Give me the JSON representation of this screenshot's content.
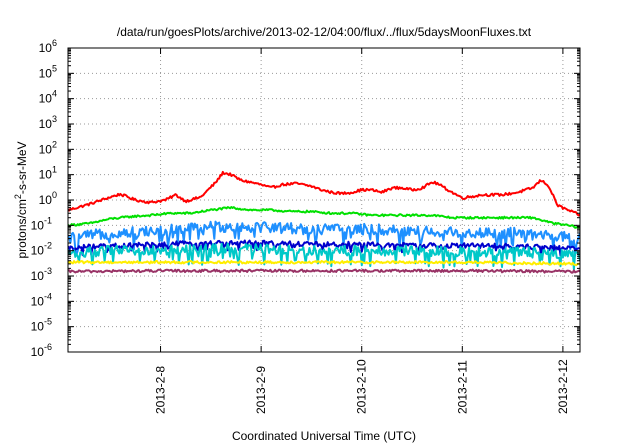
{
  "chart_data": {
    "type": "line",
    "title": "/data/run/goesPlots/archive/2013-02-12/04:00/flux/../flux/5daysMoonFluxes.txt",
    "xlabel": "Coordinated Universal Time (UTC)",
    "ylabel_parts": [
      "protons/cm",
      "2",
      "-s-sr-MeV"
    ],
    "y_scale": "log",
    "ylim_exp": [
      -6,
      6
    ],
    "y_tick_exponents": [
      6,
      5,
      4,
      3,
      2,
      1,
      0,
      -1,
      -2,
      -3,
      -4,
      -5,
      -6
    ],
    "y_tick_base": "10",
    "xlim_days": [
      7.08,
      12.17
    ],
    "x_ticks": [
      {
        "label": "2013-2-8",
        "day": 8
      },
      {
        "label": "2013-2-9",
        "day": 9
      },
      {
        "label": "2013-2-10",
        "day": 10
      },
      {
        "label": "2013-2-11",
        "day": 11
      },
      {
        "label": "2013-2-12",
        "day": 12
      }
    ],
    "grid": "dotted",
    "series": [
      {
        "color": "#ff0000",
        "noise": 0.05,
        "x": [
          7.08,
          7.3,
          7.5,
          7.6,
          7.75,
          7.9,
          8.05,
          8.15,
          8.25,
          8.4,
          8.55,
          8.62,
          8.7,
          8.8,
          8.9,
          9.0,
          9.1,
          9.2,
          9.35,
          9.5,
          9.6,
          9.7,
          9.8,
          9.9,
          10.0,
          10.1,
          10.2,
          10.3,
          10.4,
          10.5,
          10.6,
          10.7,
          10.75,
          10.9,
          11.0,
          11.2,
          11.4,
          11.55,
          11.7,
          11.78,
          11.85,
          11.95,
          12.05,
          12.17
        ],
        "y": [
          0.4,
          0.7,
          1.3,
          1.7,
          1.0,
          0.8,
          1.0,
          1.6,
          0.9,
          1.3,
          5.0,
          12.0,
          10.0,
          6.0,
          5.0,
          4.0,
          3.0,
          4.0,
          4.5,
          3.5,
          2.5,
          2.0,
          1.8,
          2.0,
          2.5,
          2.5,
          2.0,
          3.0,
          3.0,
          2.5,
          3.0,
          5.0,
          4.5,
          2.0,
          1.2,
          1.6,
          1.6,
          2.0,
          3.0,
          6.0,
          4.0,
          0.6,
          0.4,
          0.25
        ]
      },
      {
        "color": "#00e000",
        "noise": 0.04,
        "x": [
          7.08,
          7.3,
          7.5,
          7.7,
          7.9,
          8.1,
          8.3,
          8.5,
          8.7,
          8.9,
          9.1,
          9.3,
          9.5,
          9.7,
          9.9,
          10.1,
          10.3,
          10.5,
          10.7,
          10.9,
          11.1,
          11.3,
          11.5,
          11.7,
          11.9,
          12.05,
          12.17
        ],
        "y": [
          0.1,
          0.12,
          0.18,
          0.22,
          0.25,
          0.3,
          0.3,
          0.4,
          0.5,
          0.4,
          0.4,
          0.35,
          0.35,
          0.3,
          0.3,
          0.25,
          0.25,
          0.25,
          0.25,
          0.2,
          0.2,
          0.2,
          0.2,
          0.2,
          0.12,
          0.1,
          0.08
        ]
      },
      {
        "color": "#1e90ff",
        "noise": 0.22,
        "x": [
          7.08,
          7.5,
          8.0,
          8.5,
          9.0,
          9.5,
          10.0,
          10.5,
          11.0,
          11.5,
          12.17
        ],
        "y": [
          0.03,
          0.05,
          0.06,
          0.09,
          0.09,
          0.07,
          0.07,
          0.06,
          0.05,
          0.05,
          0.03
        ]
      },
      {
        "color": "#0000cc",
        "noise": 0.1,
        "x": [
          7.08,
          7.5,
          8.0,
          8.5,
          9.0,
          9.5,
          10.0,
          10.5,
          11.0,
          11.5,
          12.17
        ],
        "y": [
          0.013,
          0.015,
          0.018,
          0.02,
          0.02,
          0.018,
          0.018,
          0.016,
          0.016,
          0.015,
          0.012
        ]
      },
      {
        "color": "#00c8c8",
        "noise": 0.2,
        "x": [
          7.08,
          7.5,
          8.0,
          8.5,
          9.0,
          9.5,
          10.0,
          10.5,
          11.0,
          11.5,
          12.17
        ],
        "y": [
          0.008,
          0.01,
          0.01,
          0.012,
          0.012,
          0.01,
          0.01,
          0.01,
          0.009,
          0.009,
          0.007
        ]
      },
      {
        "color": "#ffee00",
        "noise": 0.05,
        "x": [
          7.08,
          8.0,
          9.0,
          10.0,
          11.0,
          12.17
        ],
        "y": [
          0.0035,
          0.0035,
          0.0035,
          0.0035,
          0.0035,
          0.003
        ]
      },
      {
        "color": "#993366",
        "noise": 0.05,
        "x": [
          7.08,
          8.0,
          9.0,
          10.0,
          11.0,
          12.17
        ],
        "y": [
          0.0015,
          0.0016,
          0.0016,
          0.0016,
          0.0016,
          0.0015
        ]
      }
    ]
  }
}
